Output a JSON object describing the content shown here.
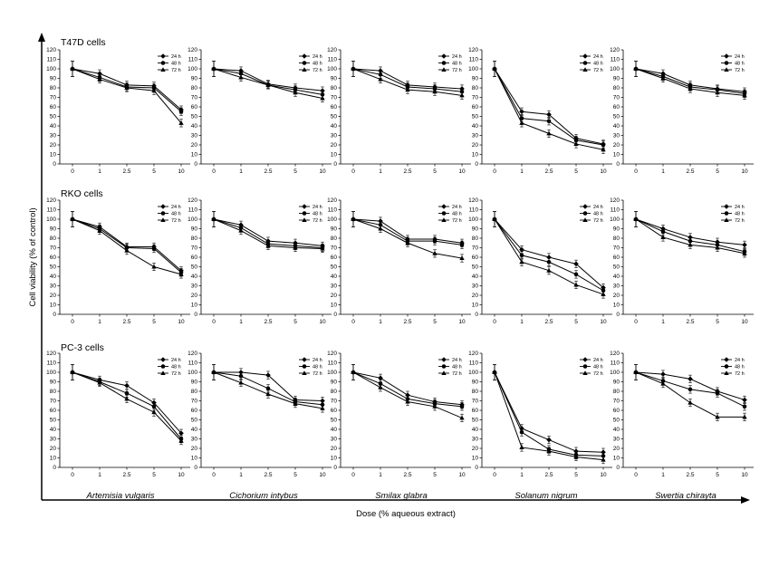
{
  "chart_data": {
    "type": "line",
    "xlabel": "Dose (% aqueous extract)",
    "ylabel": "Cell viability (% of control)",
    "x": [
      0,
      1,
      2.5,
      5,
      10
    ],
    "x_tick_labels": [
      "0",
      "1",
      "2.5",
      "5",
      "10"
    ],
    "y_ticks": [
      "0",
      "10",
      "20",
      "30",
      "40",
      "50",
      "60",
      "70",
      "80",
      "90",
      "100",
      "110",
      "120"
    ],
    "ylim": [
      0,
      120
    ],
    "legend_labels": [
      "24 h",
      "48 h",
      "72 h"
    ],
    "cell_lines": [
      "T47D cells",
      "RKO cells",
      "PC-3 cells"
    ],
    "plants": [
      "Artemisia vulgaris",
      "Cichorium intybus",
      "Smilax glabra",
      "Solanum nigrum",
      "Swertia chirayta"
    ],
    "panels": [
      [
        {
          "series": [
            {
              "name": "24 h",
              "values": [
                100,
                95,
                83,
                82,
                57
              ]
            },
            {
              "name": "48 h",
              "values": [
                100,
                91,
                81,
                80,
                55
              ]
            },
            {
              "name": "72 h",
              "values": [
                100,
                89,
                80,
                77,
                43
              ]
            }
          ]
        },
        {
          "series": [
            {
              "name": "24 h",
              "values": [
                100,
                98,
                84,
                80,
                77
              ]
            },
            {
              "name": "48 h",
              "values": [
                100,
                95,
                83,
                78,
                73
              ]
            },
            {
              "name": "72 h",
              "values": [
                100,
                91,
                83,
                75,
                69
              ]
            }
          ]
        },
        {
          "series": [
            {
              "name": "24 h",
              "values": [
                100,
                98,
                83,
                81,
                79
              ]
            },
            {
              "name": "48 h",
              "values": [
                100,
                94,
                81,
                79,
                76
              ]
            },
            {
              "name": "72 h",
              "values": [
                100,
                89,
                78,
                76,
                72
              ]
            }
          ]
        },
        {
          "series": [
            {
              "name": "24 h",
              "values": [
                100,
                55,
                52,
                27,
                21
              ]
            },
            {
              "name": "48 h",
              "values": [
                100,
                48,
                45,
                25,
                20
              ]
            },
            {
              "name": "72 h",
              "values": [
                100,
                43,
                32,
                21,
                15
              ]
            }
          ]
        },
        {
          "series": [
            {
              "name": "24 h",
              "values": [
                100,
                95,
                83,
                79,
                76
              ]
            },
            {
              "name": "48 h",
              "values": [
                100,
                92,
                81,
                78,
                74
              ]
            },
            {
              "name": "72 h",
              "values": [
                100,
                90,
                79,
                75,
                72
              ]
            }
          ]
        }
      ],
      [
        {
          "series": [
            {
              "name": "24 h",
              "values": [
                100,
                92,
                71,
                71,
                46
              ]
            },
            {
              "name": "48 h",
              "values": [
                100,
                90,
                70,
                69,
                44
              ]
            },
            {
              "name": "72 h",
              "values": [
                100,
                88,
                67,
                50,
                42
              ]
            }
          ]
        },
        {
          "series": [
            {
              "name": "24 h",
              "values": [
                100,
                94,
                77,
                75,
                72
              ]
            },
            {
              "name": "48 h",
              "values": [
                100,
                91,
                74,
                72,
                70
              ]
            },
            {
              "name": "72 h",
              "values": [
                100,
                88,
                72,
                70,
                69
              ]
            }
          ]
        },
        {
          "series": [
            {
              "name": "24 h",
              "values": [
                100,
                98,
                79,
                79,
                75
              ]
            },
            {
              "name": "48 h",
              "values": [
                100,
                94,
                77,
                77,
                73
              ]
            },
            {
              "name": "72 h",
              "values": [
                100,
                90,
                75,
                64,
                59
              ]
            }
          ]
        },
        {
          "series": [
            {
              "name": "24 h",
              "values": [
                100,
                68,
                60,
                53,
                28
              ]
            },
            {
              "name": "48 h",
              "values": [
                100,
                62,
                55,
                42,
                25
              ]
            },
            {
              "name": "72 h",
              "values": [
                100,
                55,
                46,
                31,
                21
              ]
            }
          ]
        },
        {
          "series": [
            {
              "name": "24 h",
              "values": [
                100,
                90,
                81,
                76,
                73
              ]
            },
            {
              "name": "48 h",
              "values": [
                100,
                87,
                77,
                73,
                66
              ]
            },
            {
              "name": "72 h",
              "values": [
                100,
                81,
                73,
                70,
                64
              ]
            }
          ]
        }
      ],
      [
        {
          "series": [
            {
              "name": "24 h",
              "values": [
                100,
                92,
                86,
                68,
                36
              ]
            },
            {
              "name": "48 h",
              "values": [
                100,
                90,
                78,
                64,
                30
              ]
            },
            {
              "name": "72 h",
              "values": [
                100,
                89,
                72,
                58,
                28
              ]
            }
          ]
        },
        {
          "series": [
            {
              "name": "24 h",
              "values": [
                100,
                100,
                97,
                71,
                70
              ]
            },
            {
              "name": "48 h",
              "values": [
                100,
                96,
                83,
                69,
                66
              ]
            },
            {
              "name": "72 h",
              "values": [
                100,
                89,
                77,
                67,
                62
              ]
            }
          ]
        },
        {
          "series": [
            {
              "name": "24 h",
              "values": [
                100,
                94,
                76,
                69,
                66
              ]
            },
            {
              "name": "48 h",
              "values": [
                100,
                88,
                72,
                67,
                64
              ]
            },
            {
              "name": "72 h",
              "values": [
                100,
                84,
                69,
                64,
                52
              ]
            }
          ]
        },
        {
          "series": [
            {
              "name": "24 h",
              "values": [
                100,
                41,
                29,
                17,
                16
              ]
            },
            {
              "name": "48 h",
              "values": [
                100,
                37,
                19,
                13,
                12
              ]
            },
            {
              "name": "72 h",
              "values": [
                100,
                21,
                17,
                11,
                8
              ]
            }
          ]
        },
        {
          "series": [
            {
              "name": "24 h",
              "values": [
                100,
                98,
                93,
                80,
                71
              ]
            },
            {
              "name": "48 h",
              "values": [
                100,
                91,
                82,
                78,
                64
              ]
            },
            {
              "name": "72 h",
              "values": [
                100,
                88,
                68,
                53,
                53
              ]
            }
          ]
        }
      ]
    ]
  }
}
